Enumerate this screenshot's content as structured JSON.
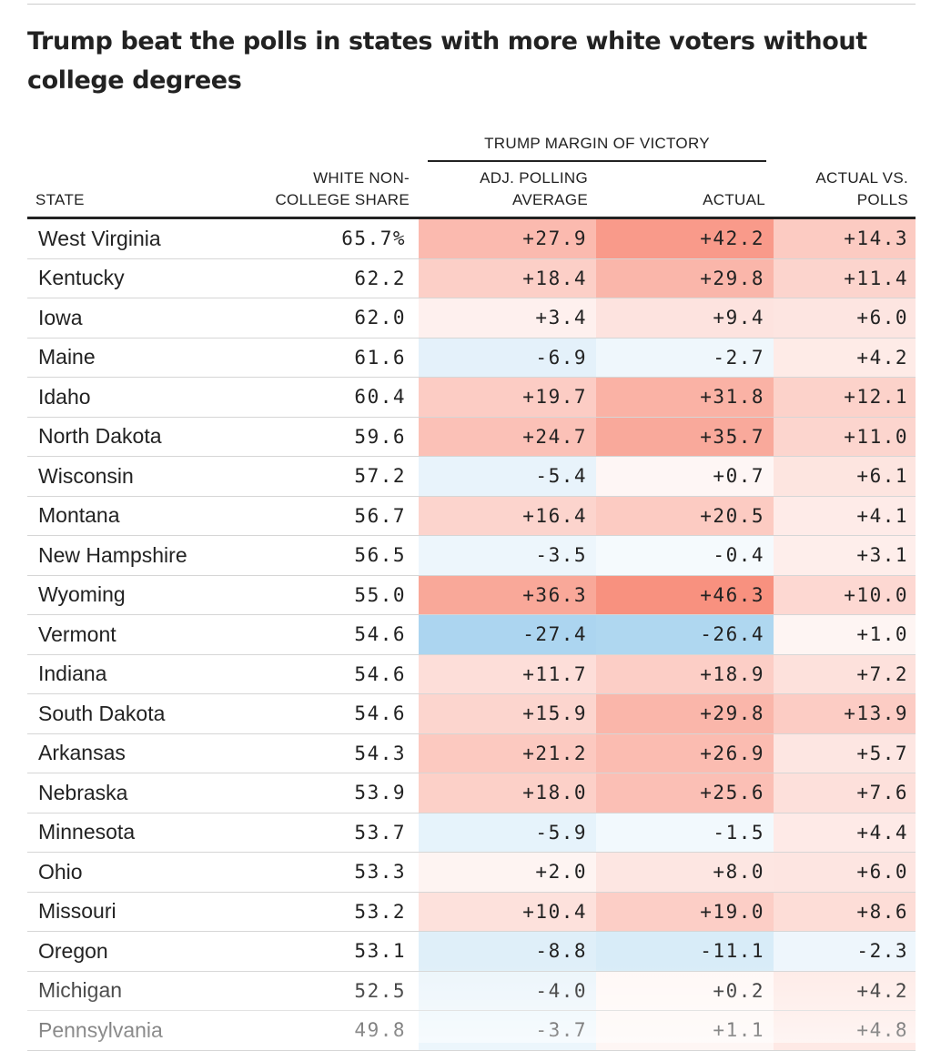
{
  "title": "Trump beat the polls in states with more white voters without college degrees",
  "group_header": "TRUMP MARGIN OF VICTORY",
  "columns": {
    "state": "STATE",
    "white_noncollege_line1": "WHITE NON-",
    "white_noncollege_line2": "COLLEGE SHARE",
    "polling_line1": "ADJ. POLLING",
    "polling_line2": "AVERAGE",
    "actual": "ACTUAL",
    "diff_line1": "ACTUAL VS.",
    "diff_line2": "POLLS"
  },
  "colors": {
    "positive_scale": "#f6735c",
    "negative_scale": "#54a9e0"
  },
  "chart_data": {
    "type": "table",
    "title": "Trump beat the polls in states with more white voters without college degrees",
    "rows": [
      {
        "state": "West Virginia",
        "white": "65.7%",
        "poll": "+27.9",
        "actual": "+42.2",
        "diff": "+14.3"
      },
      {
        "state": "Kentucky",
        "white": "62.2",
        "poll": "+18.4",
        "actual": "+29.8",
        "diff": "+11.4"
      },
      {
        "state": "Iowa",
        "white": "62.0",
        "poll": "+3.4",
        "actual": "+9.4",
        "diff": "+6.0"
      },
      {
        "state": "Maine",
        "white": "61.6",
        "poll": "-6.9",
        "actual": "-2.7",
        "diff": "+4.2"
      },
      {
        "state": "Idaho",
        "white": "60.4",
        "poll": "+19.7",
        "actual": "+31.8",
        "diff": "+12.1"
      },
      {
        "state": "North Dakota",
        "white": "59.6",
        "poll": "+24.7",
        "actual": "+35.7",
        "diff": "+11.0"
      },
      {
        "state": "Wisconsin",
        "white": "57.2",
        "poll": "-5.4",
        "actual": "+0.7",
        "diff": "+6.1"
      },
      {
        "state": "Montana",
        "white": "56.7",
        "poll": "+16.4",
        "actual": "+20.5",
        "diff": "+4.1"
      },
      {
        "state": "New Hampshire",
        "white": "56.5",
        "poll": "-3.5",
        "actual": "-0.4",
        "diff": "+3.1"
      },
      {
        "state": "Wyoming",
        "white": "55.0",
        "poll": "+36.3",
        "actual": "+46.3",
        "diff": "+10.0"
      },
      {
        "state": "Vermont",
        "white": "54.6",
        "poll": "-27.4",
        "actual": "-26.4",
        "diff": "+1.0"
      },
      {
        "state": "Indiana",
        "white": "54.6",
        "poll": "+11.7",
        "actual": "+18.9",
        "diff": "+7.2"
      },
      {
        "state": "South Dakota",
        "white": "54.6",
        "poll": "+15.9",
        "actual": "+29.8",
        "diff": "+13.9"
      },
      {
        "state": "Arkansas",
        "white": "54.3",
        "poll": "+21.2",
        "actual": "+26.9",
        "diff": "+5.7"
      },
      {
        "state": "Nebraska",
        "white": "53.9",
        "poll": "+18.0",
        "actual": "+25.6",
        "diff": "+7.6"
      },
      {
        "state": "Minnesota",
        "white": "53.7",
        "poll": "-5.9",
        "actual": "-1.5",
        "diff": "+4.4"
      },
      {
        "state": "Ohio",
        "white": "53.3",
        "poll": "+2.0",
        "actual": "+8.0",
        "diff": "+6.0"
      },
      {
        "state": "Missouri",
        "white": "53.2",
        "poll": "+10.4",
        "actual": "+19.0",
        "diff": "+8.6"
      },
      {
        "state": "Oregon",
        "white": "53.1",
        "poll": "-8.8",
        "actual": "-11.1",
        "diff": "-2.3"
      },
      {
        "state": "Michigan",
        "white": "52.5",
        "poll": "-4.0",
        "actual": "+0.2",
        "diff": "+4.2"
      },
      {
        "state": "Pennsylvania",
        "white": "49.8",
        "poll": "-3.7",
        "actual": "+1.1",
        "diff": "+4.8"
      }
    ]
  }
}
